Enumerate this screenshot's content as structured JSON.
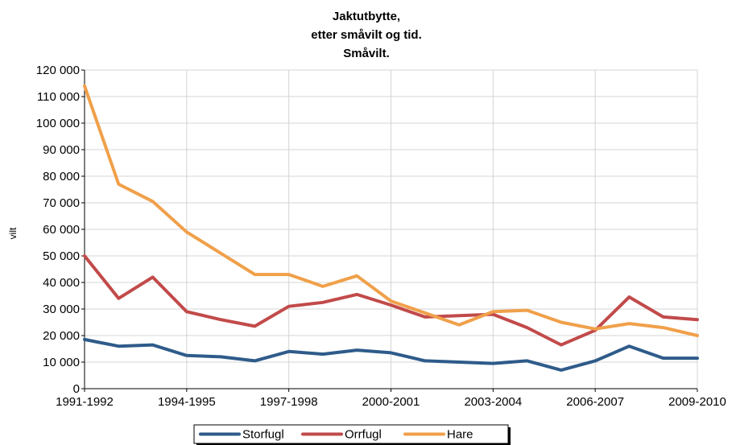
{
  "chart_data": {
    "type": "line",
    "title": [
      "Jaktutbytte,",
      "etter småvilt og tid.",
      "Småvilt."
    ],
    "xlabel": "",
    "ylabel": "vilt",
    "ylim": [
      0,
      120000
    ],
    "yticks": [
      0,
      10000,
      20000,
      30000,
      40000,
      50000,
      60000,
      70000,
      80000,
      90000,
      100000,
      110000,
      120000
    ],
    "ytick_labels": [
      "0",
      "10 000",
      "20 000",
      "30 000",
      "40 000",
      "50 000",
      "60 000",
      "70 000",
      "80 000",
      "90 000",
      "100 000",
      "110 000",
      "120 000"
    ],
    "categories": [
      "1991-1992",
      "1992-1993",
      "1993-1994",
      "1994-1995",
      "1995-1996",
      "1996-1997",
      "1997-1998",
      "1998-1999",
      "1999-2000",
      "2000-2001",
      "2001-2002",
      "2002-2003",
      "2003-2004",
      "2004-2005",
      "2005-2006",
      "2006-2007",
      "2007-2008",
      "2008-2009",
      "2009-2010"
    ],
    "xtick_labels": [
      "1991-1992",
      "1994-1995",
      "1997-1998",
      "2000-2001",
      "2003-2004",
      "2006-2007",
      "2009-2010"
    ],
    "xtick_indices": [
      0,
      3,
      6,
      9,
      12,
      15,
      18
    ],
    "grid": true,
    "legend_position": "bottom",
    "series": [
      {
        "name": "Storfugl",
        "color": "#2e5b8a",
        "values": [
          18500,
          16000,
          16500,
          12500,
          12000,
          10500,
          14000,
          13000,
          14500,
          13500,
          10500,
          10000,
          9500,
          10500,
          7000,
          10500,
          16000,
          11500,
          11500
        ]
      },
      {
        "name": "Orrfugl",
        "color": "#c24a4a",
        "values": [
          50000,
          34000,
          42000,
          29000,
          26000,
          23500,
          31000,
          32500,
          35500,
          31500,
          27000,
          27500,
          28000,
          23000,
          16500,
          22000,
          34500,
          27000,
          26000
        ]
      },
      {
        "name": "Hare",
        "color": "#f0a04a",
        "values": [
          114000,
          77000,
          70500,
          59000,
          51000,
          43000,
          43000,
          38500,
          42500,
          33000,
          28500,
          24000,
          29000,
          29500,
          25000,
          22500,
          24500,
          23000,
          20000
        ]
      }
    ]
  }
}
